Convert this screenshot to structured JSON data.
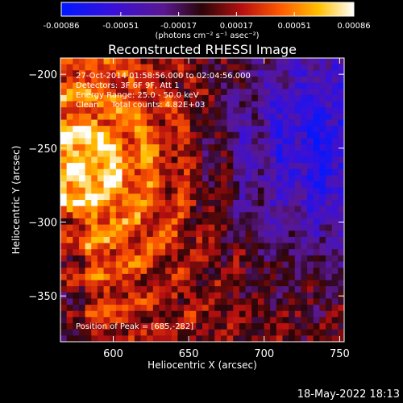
{
  "chart_data": {
    "type": "heatmap",
    "title": "Reconstructed RHESSI Image",
    "xlabel": "Heliocentric X (arcsec)",
    "ylabel": "Heliocentric Y (arcsec)",
    "xlim": [
      565,
      753
    ],
    "ylim": [
      -381,
      -189
    ],
    "xticks": [
      600,
      650,
      700,
      750
    ],
    "yticks": [
      -200,
      -250,
      -300,
      -350
    ],
    "colorbar": {
      "ticks": [
        -0.00086,
        -0.00051,
        -0.00017,
        0.00017,
        0.00051,
        0.00086
      ],
      "tick_labels": [
        "-0.00086",
        "-0.00051",
        "-0.00017",
        "0.00017",
        "0.00051",
        "0.00086"
      ],
      "range": [
        -0.00086,
        0.00086
      ],
      "unit_label": "(photons cm⁻² s⁻¹ asec⁻²)"
    },
    "annotations": {
      "time_range": "27-Oct-2014 01:58:56.000 to 02:04:56.000",
      "detectors": "Detectors: 3F 6F 9F, Att 1",
      "energy": "Energy Range: 25.0 - 50.0 keV",
      "method": "Clean     Total counts: 4.82E+03",
      "peak": "Position of Peak = [685,-282]"
    },
    "peak_position": [
      685,
      -282
    ],
    "grid": false,
    "colormap": "RHESSI (blue-purple-red-orange-yellow-white)"
  },
  "footer": {
    "date": "18-May-2022 18:13"
  }
}
